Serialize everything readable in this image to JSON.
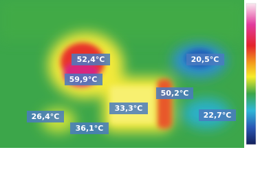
{
  "labels": [
    {
      "text": "52,4°C"
    },
    {
      "text": "59,9°C"
    },
    {
      "text": "20,5°C"
    },
    {
      "text": "50,2°C"
    },
    {
      "text": "26,4°C"
    },
    {
      "text": "33,3°C"
    },
    {
      "text": "22,7°C"
    },
    {
      "text": "36,1°C"
    }
  ]
}
